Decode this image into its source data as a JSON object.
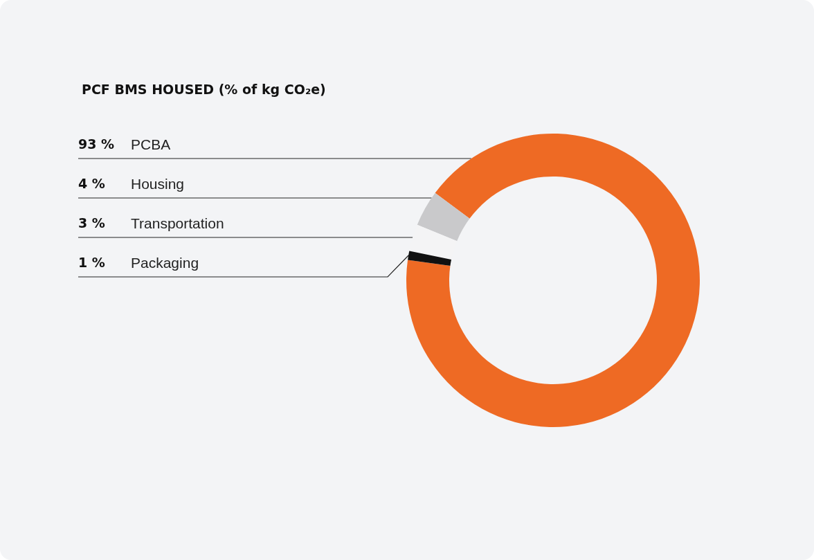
{
  "chart_data": {
    "type": "donut",
    "title": "PCF BMS HOUSED (% of kg CO₂e)",
    "categories": [
      "PCBA",
      "Housing",
      "Transportation",
      "Packaging"
    ],
    "values": [
      93,
      4,
      3,
      1
    ],
    "colors": [
      "#ee6a24",
      "#c9c9cb",
      "#f4f4f5",
      "#111111"
    ],
    "value_labels": [
      "93 %",
      "4 %",
      "3 %",
      "1 %"
    ],
    "legend": false
  }
}
